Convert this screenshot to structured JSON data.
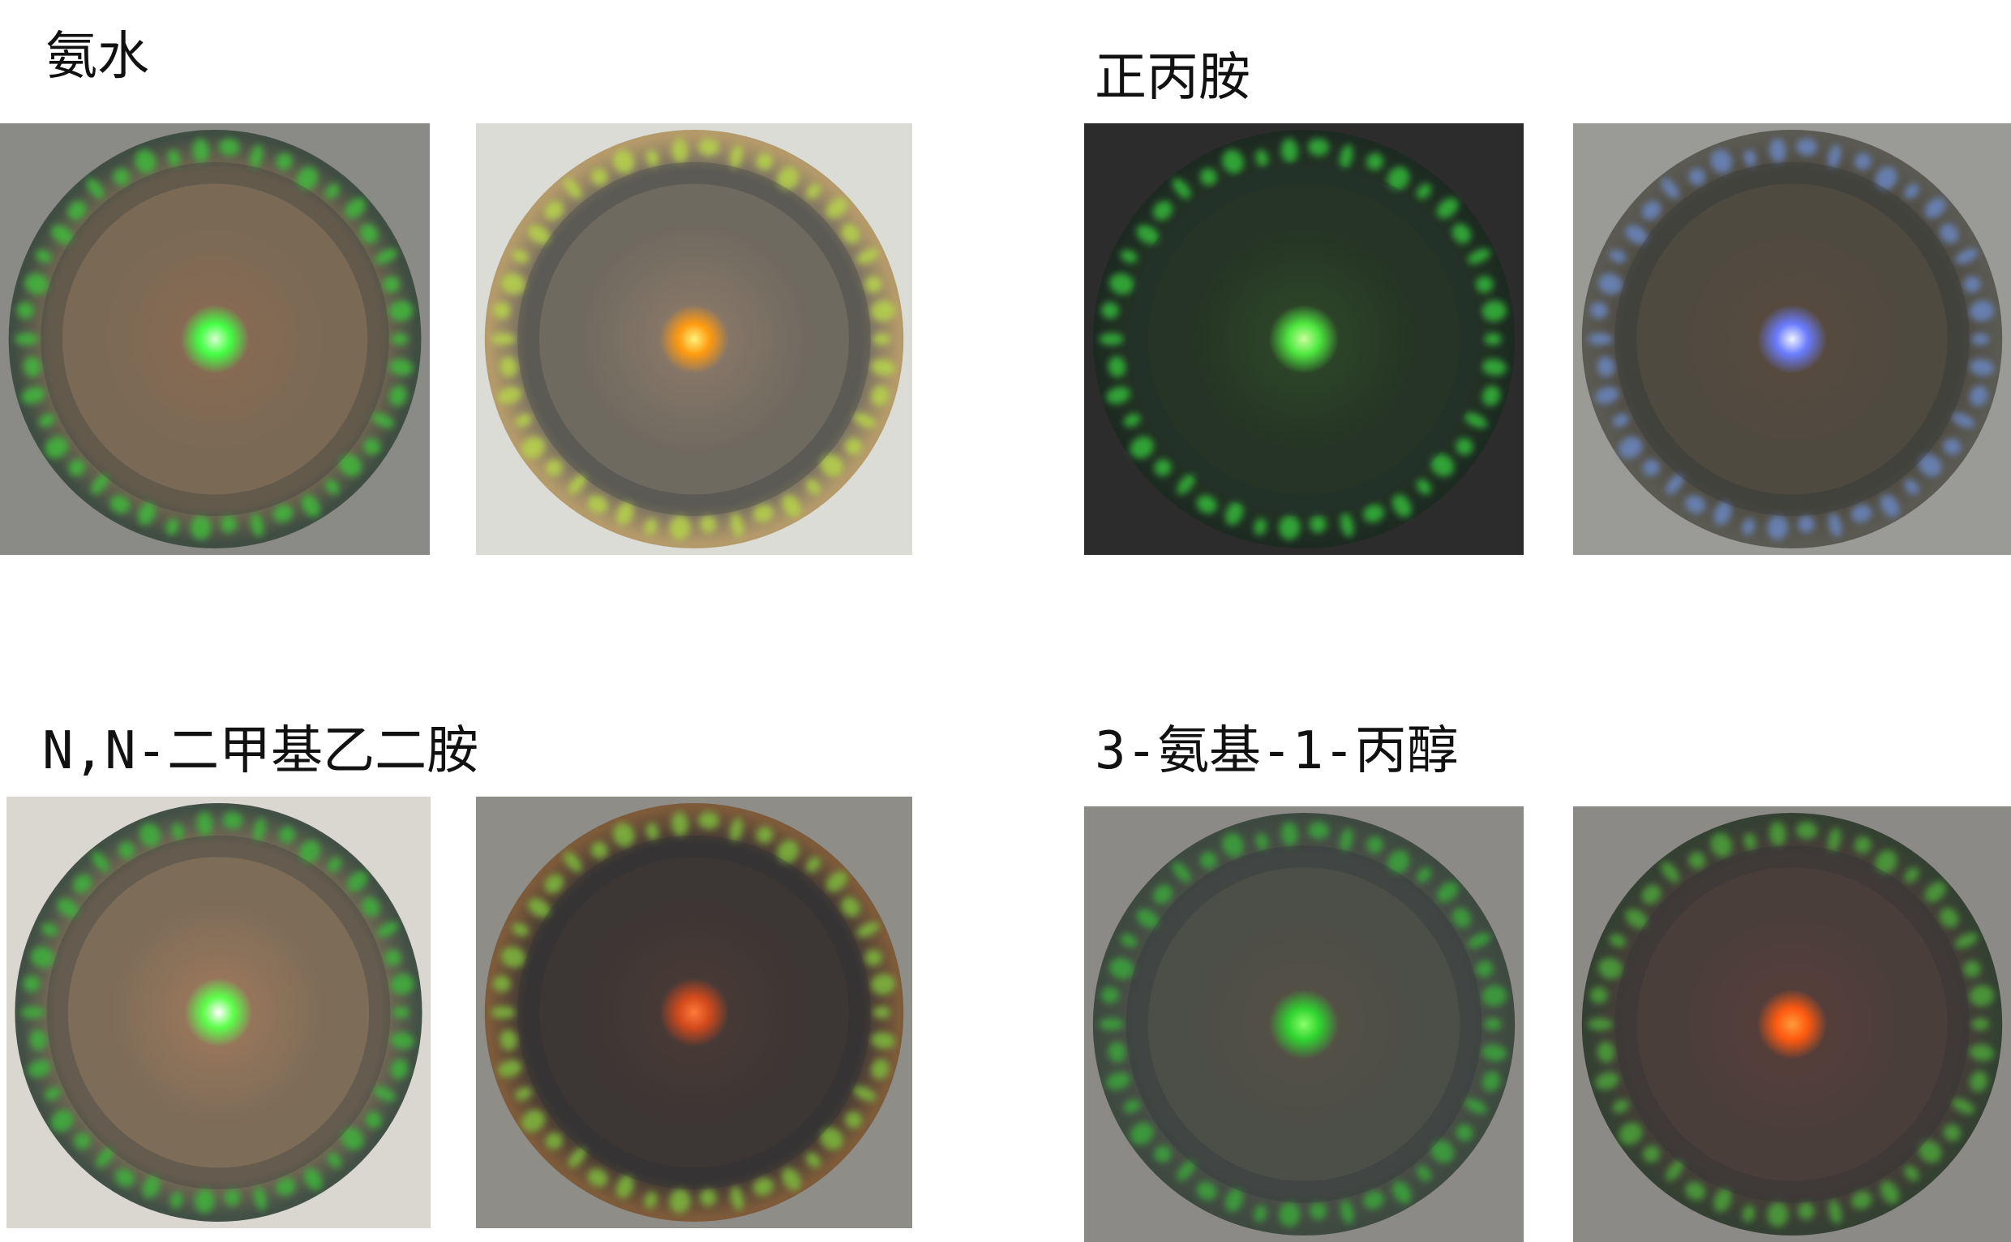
{
  "panels": [
    {
      "label": "氨水",
      "images": [
        {
          "background": "#8a8a86",
          "rim": "#3f4d42",
          "edge_glow": "#3fbf3a",
          "body": "#7a6a55",
          "inner": "#8c6a52",
          "spot": "#44ff44",
          "spot_core": "#d9ffd0"
        },
        {
          "background": "#dcdcd6",
          "rim": "#b49a6a",
          "edge_glow": "#b8d84a",
          "body": "#6f6a60",
          "inner": "#8f7b6a",
          "spot": "#ff9a10",
          "spot_core": "#fff27a"
        }
      ]
    },
    {
      "label": "正丙胺",
      "images": [
        {
          "background": "#2c2c2c",
          "rim": "#1d2a22",
          "edge_glow": "#35c03a",
          "body": "#253424",
          "inner": "#2f4a2a",
          "spot": "#4ee83f",
          "spot_core": "#c8ff9a"
        },
        {
          "background": "#9a9a96",
          "rim": "#5a5a52",
          "edge_glow": "#6c8ac8",
          "body": "#4e4a40",
          "inner": "#5a4a3e",
          "spot": "#6a7cff",
          "spot_core": "#f0f4ff"
        }
      ]
    },
    {
      "label": "N,N-二甲基乙二胺",
      "images": [
        {
          "background": "#d9d7cf",
          "rim": "#425045",
          "edge_glow": "#3cb83a",
          "body": "#7d6c58",
          "inner": "#a07a5c",
          "spot": "#5cff4a",
          "spot_core": "#ffffff"
        },
        {
          "background": "#8e8d88",
          "rim": "#7c5a3a",
          "edge_glow": "#7fbf3c",
          "body": "#3c3634",
          "inner": "#4c3a36",
          "spot": "#d24a1c",
          "spot_core": "#ff7a3a"
        }
      ]
    },
    {
      "label": "3-氨基-1-丙醇",
      "images": [
        {
          "background": "#8c8a86",
          "rim": "#3e4a40",
          "edge_glow": "#3aaa3a",
          "body": "#4c4e48",
          "inner": "#565044",
          "spot": "#2fd42f",
          "spot_core": "#8aff6a"
        },
        {
          "background": "#8c8a86",
          "rim": "#344032",
          "edge_glow": "#4ea83a",
          "body": "#4a3e3a",
          "inner": "#5a3e3a",
          "spot": "#ff5a10",
          "spot_core": "#ff9a3a"
        }
      ]
    }
  ]
}
